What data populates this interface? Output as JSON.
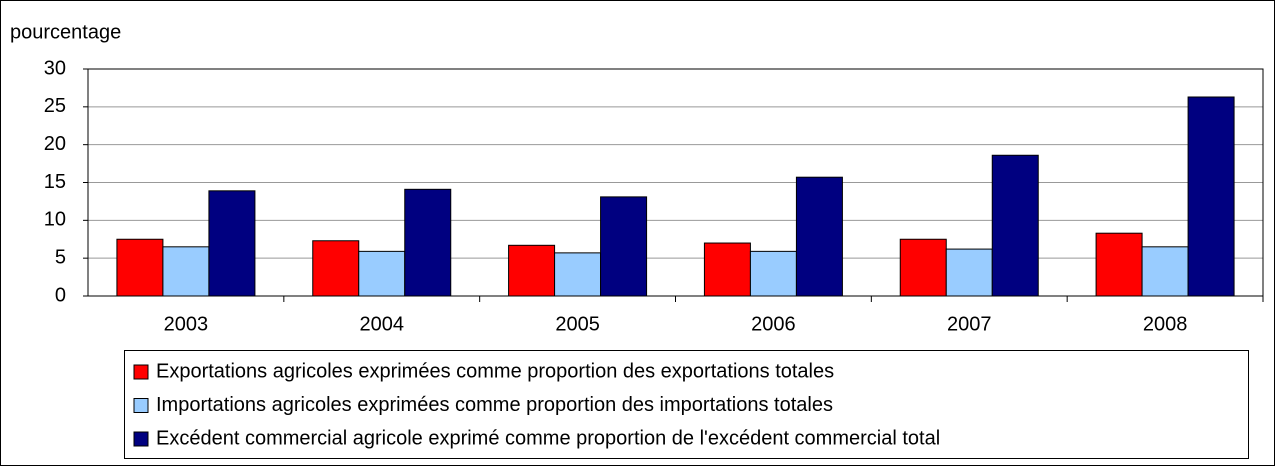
{
  "chart_data": {
    "type": "bar",
    "y_label": "pourcentage",
    "categories": [
      "2003",
      "2004",
      "2005",
      "2006",
      "2007",
      "2008"
    ],
    "series": [
      {
        "name": "Exportations agricoles exprimées comme proportion des exportations totales",
        "color": "#ff0000",
        "values": [
          7.5,
          7.3,
          6.7,
          7.0,
          7.5,
          8.3
        ]
      },
      {
        "name": "Importations agricoles exprimées comme proportion des importations totales",
        "color": "#99ccff",
        "values": [
          6.5,
          5.9,
          5.7,
          5.9,
          6.2,
          6.5
        ]
      },
      {
        "name": "Excédent commercial agricole exprimé comme proportion de l'excédent commercial total",
        "color": "#000080",
        "values": [
          13.9,
          14.1,
          13.1,
          15.7,
          18.6,
          26.3
        ]
      }
    ],
    "ylim": [
      0,
      30
    ],
    "yticks": [
      0,
      5,
      10,
      15,
      20,
      25,
      30
    ],
    "grid": true,
    "legend": "bottom"
  }
}
